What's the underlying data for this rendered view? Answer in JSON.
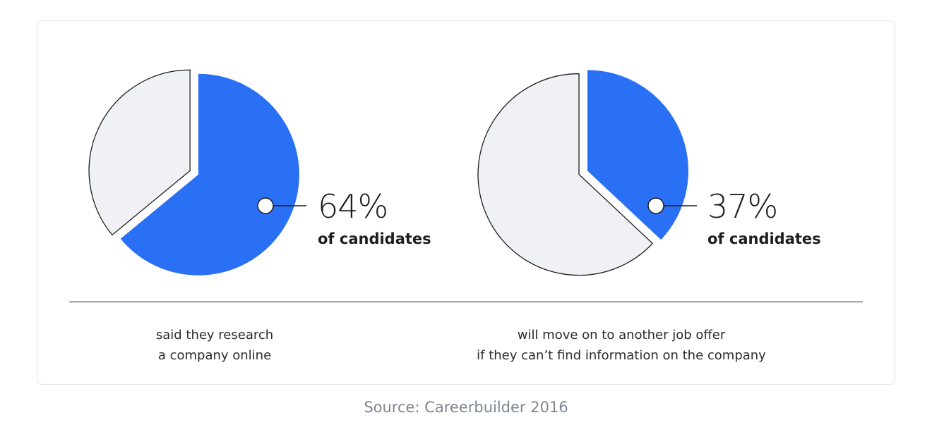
{
  "colors": {
    "accent": "#2a70f4",
    "remainder_fill": "#f0f1f5",
    "stroke": "#1d1d1f",
    "source_text": "#7d8591"
  },
  "chart_data": [
    {
      "type": "pie",
      "values": [
        64,
        36
      ],
      "highlighted_slice": 0,
      "label": {
        "value": "64%",
        "unit_text": "of candidates"
      },
      "caption": [
        "said they research",
        "a company online"
      ]
    },
    {
      "type": "pie",
      "values": [
        37,
        63
      ],
      "highlighted_slice": 0,
      "label": {
        "value": "37%",
        "unit_text": "of candidates"
      },
      "caption": [
        "will move on to another job offer",
        "if they can’t find information on the company"
      ]
    }
  ],
  "source": "Source: Careerbuilder 2016"
}
